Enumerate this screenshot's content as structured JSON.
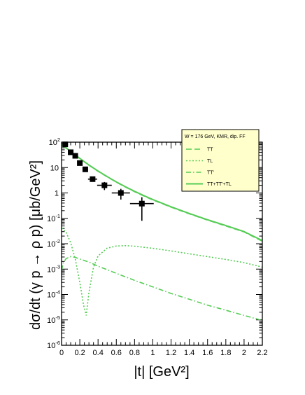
{
  "chart_data": {
    "type": "line",
    "title": "",
    "xlabel": "|t| [GeV²]",
    "ylabel": "dσ/dt (γ p → ρ p) [μb/GeV²]",
    "xlim": [
      0,
      2.2
    ],
    "ylim_log10": [
      -6,
      2
    ],
    "yscale": "log",
    "x_ticks": [
      0,
      0.2,
      0.4,
      0.6,
      0.8,
      1,
      1.2,
      1.4,
      1.6,
      1.8,
      2,
      2.2
    ],
    "x_tick_labels": [
      "0",
      "0.2",
      "0.4",
      "0.6",
      "0.8",
      "1",
      "1.2",
      "1.4",
      "1.6",
      "1.8",
      "2",
      "2.2"
    ],
    "y_ticks": [
      {
        "base": "10",
        "exp": "-6"
      },
      {
        "base": "10",
        "exp": "-5"
      },
      {
        "base": "10",
        "exp": "-4"
      },
      {
        "base": "10",
        "exp": "-3"
      },
      {
        "base": "10",
        "exp": "-2"
      },
      {
        "base": "10",
        "exp": "-1"
      },
      {
        "base": "1",
        "exp": ""
      },
      {
        "base": "10",
        "exp": ""
      },
      {
        "base": "10",
        "exp": "2"
      }
    ],
    "legend_title": "W = 176 GeV, KMR, dip. FF",
    "legend_position": "top-right",
    "series": [
      {
        "name": "TT",
        "style": "dashed",
        "color": "#55cc55",
        "x": [
          0,
          0.1,
          0.2,
          0.3,
          0.4,
          0.5,
          0.6,
          0.7,
          0.8,
          0.9,
          1.0,
          1.2,
          1.4,
          1.6,
          1.8,
          2.0,
          2.2
        ],
        "y": [
          80,
          42,
          22.5,
          12.3,
          7.1,
          4.3,
          2.65,
          1.7,
          1.12,
          0.76,
          0.53,
          0.275,
          0.15,
          0.085,
          0.05,
          0.029,
          0.0125
        ]
      },
      {
        "name": "TL",
        "style": "dotted",
        "color": "#55cc55",
        "x": [
          0,
          0.05,
          0.1,
          0.15,
          0.2,
          0.24,
          0.27,
          0.3,
          0.35,
          0.4,
          0.5,
          0.6,
          0.7,
          0.8,
          1.0,
          1.2,
          1.4,
          1.6,
          1.8,
          2.0,
          2.2
        ],
        "y": [
          0.042,
          0.028,
          0.011,
          0.0025,
          0.0003,
          4e-05,
          1.5e-05,
          0.00012,
          0.0012,
          0.0033,
          0.0067,
          0.0081,
          0.0084,
          0.008,
          0.0066,
          0.0052,
          0.004,
          0.0031,
          0.0024,
          0.0018,
          0.0012
        ]
      },
      {
        "name": "TT'",
        "style": "dashdot",
        "color": "#55cc55",
        "x": [
          0,
          0.02,
          0.05,
          0.1,
          0.15,
          0.2,
          0.3,
          0.4,
          0.5,
          0.6,
          0.8,
          1.0,
          1.2,
          1.4,
          1.6,
          1.8,
          2.0,
          2.2
        ],
        "y": [
          0.0009,
          0.0018,
          0.0026,
          0.0031,
          0.0029,
          0.0025,
          0.0019,
          0.0013,
          0.00095,
          0.00068,
          0.00036,
          0.0002,
          0.00011,
          6.5e-05,
          3.8e-05,
          2.4e-05,
          1.5e-05,
          9.5e-06
        ]
      },
      {
        "name": "TT+TT'+TL",
        "style": "solid",
        "color": "#55cc55",
        "x": [
          0,
          0.1,
          0.2,
          0.3,
          0.4,
          0.5,
          0.6,
          0.7,
          0.8,
          0.9,
          1.0,
          1.2,
          1.4,
          1.6,
          1.8,
          2.0,
          2.2
        ],
        "y": [
          82,
          43,
          23,
          12.6,
          7.3,
          4.4,
          2.72,
          1.75,
          1.16,
          0.79,
          0.55,
          0.285,
          0.155,
          0.088,
          0.052,
          0.03,
          0.0133
        ]
      }
    ],
    "points": {
      "marker": "filled-square",
      "x": [
        0.04,
        0.1,
        0.15,
        0.2,
        0.26,
        0.34,
        0.47,
        0.65,
        0.88
      ],
      "y": [
        82,
        40,
        29,
        15,
        8.5,
        3.5,
        2.0,
        1.0,
        0.38
      ],
      "x_err": [
        0.03,
        0.025,
        0.025,
        0.025,
        0.03,
        0.05,
        0.08,
        0.1,
        0.13
      ],
      "y_err_low": [
        10,
        5,
        3,
        2,
        1,
        0.7,
        0.7,
        0.45,
        0.3
      ],
      "y_err_high": [
        10,
        5,
        3,
        2,
        1,
        0.7,
        0.7,
        0.45,
        0.3
      ]
    }
  }
}
